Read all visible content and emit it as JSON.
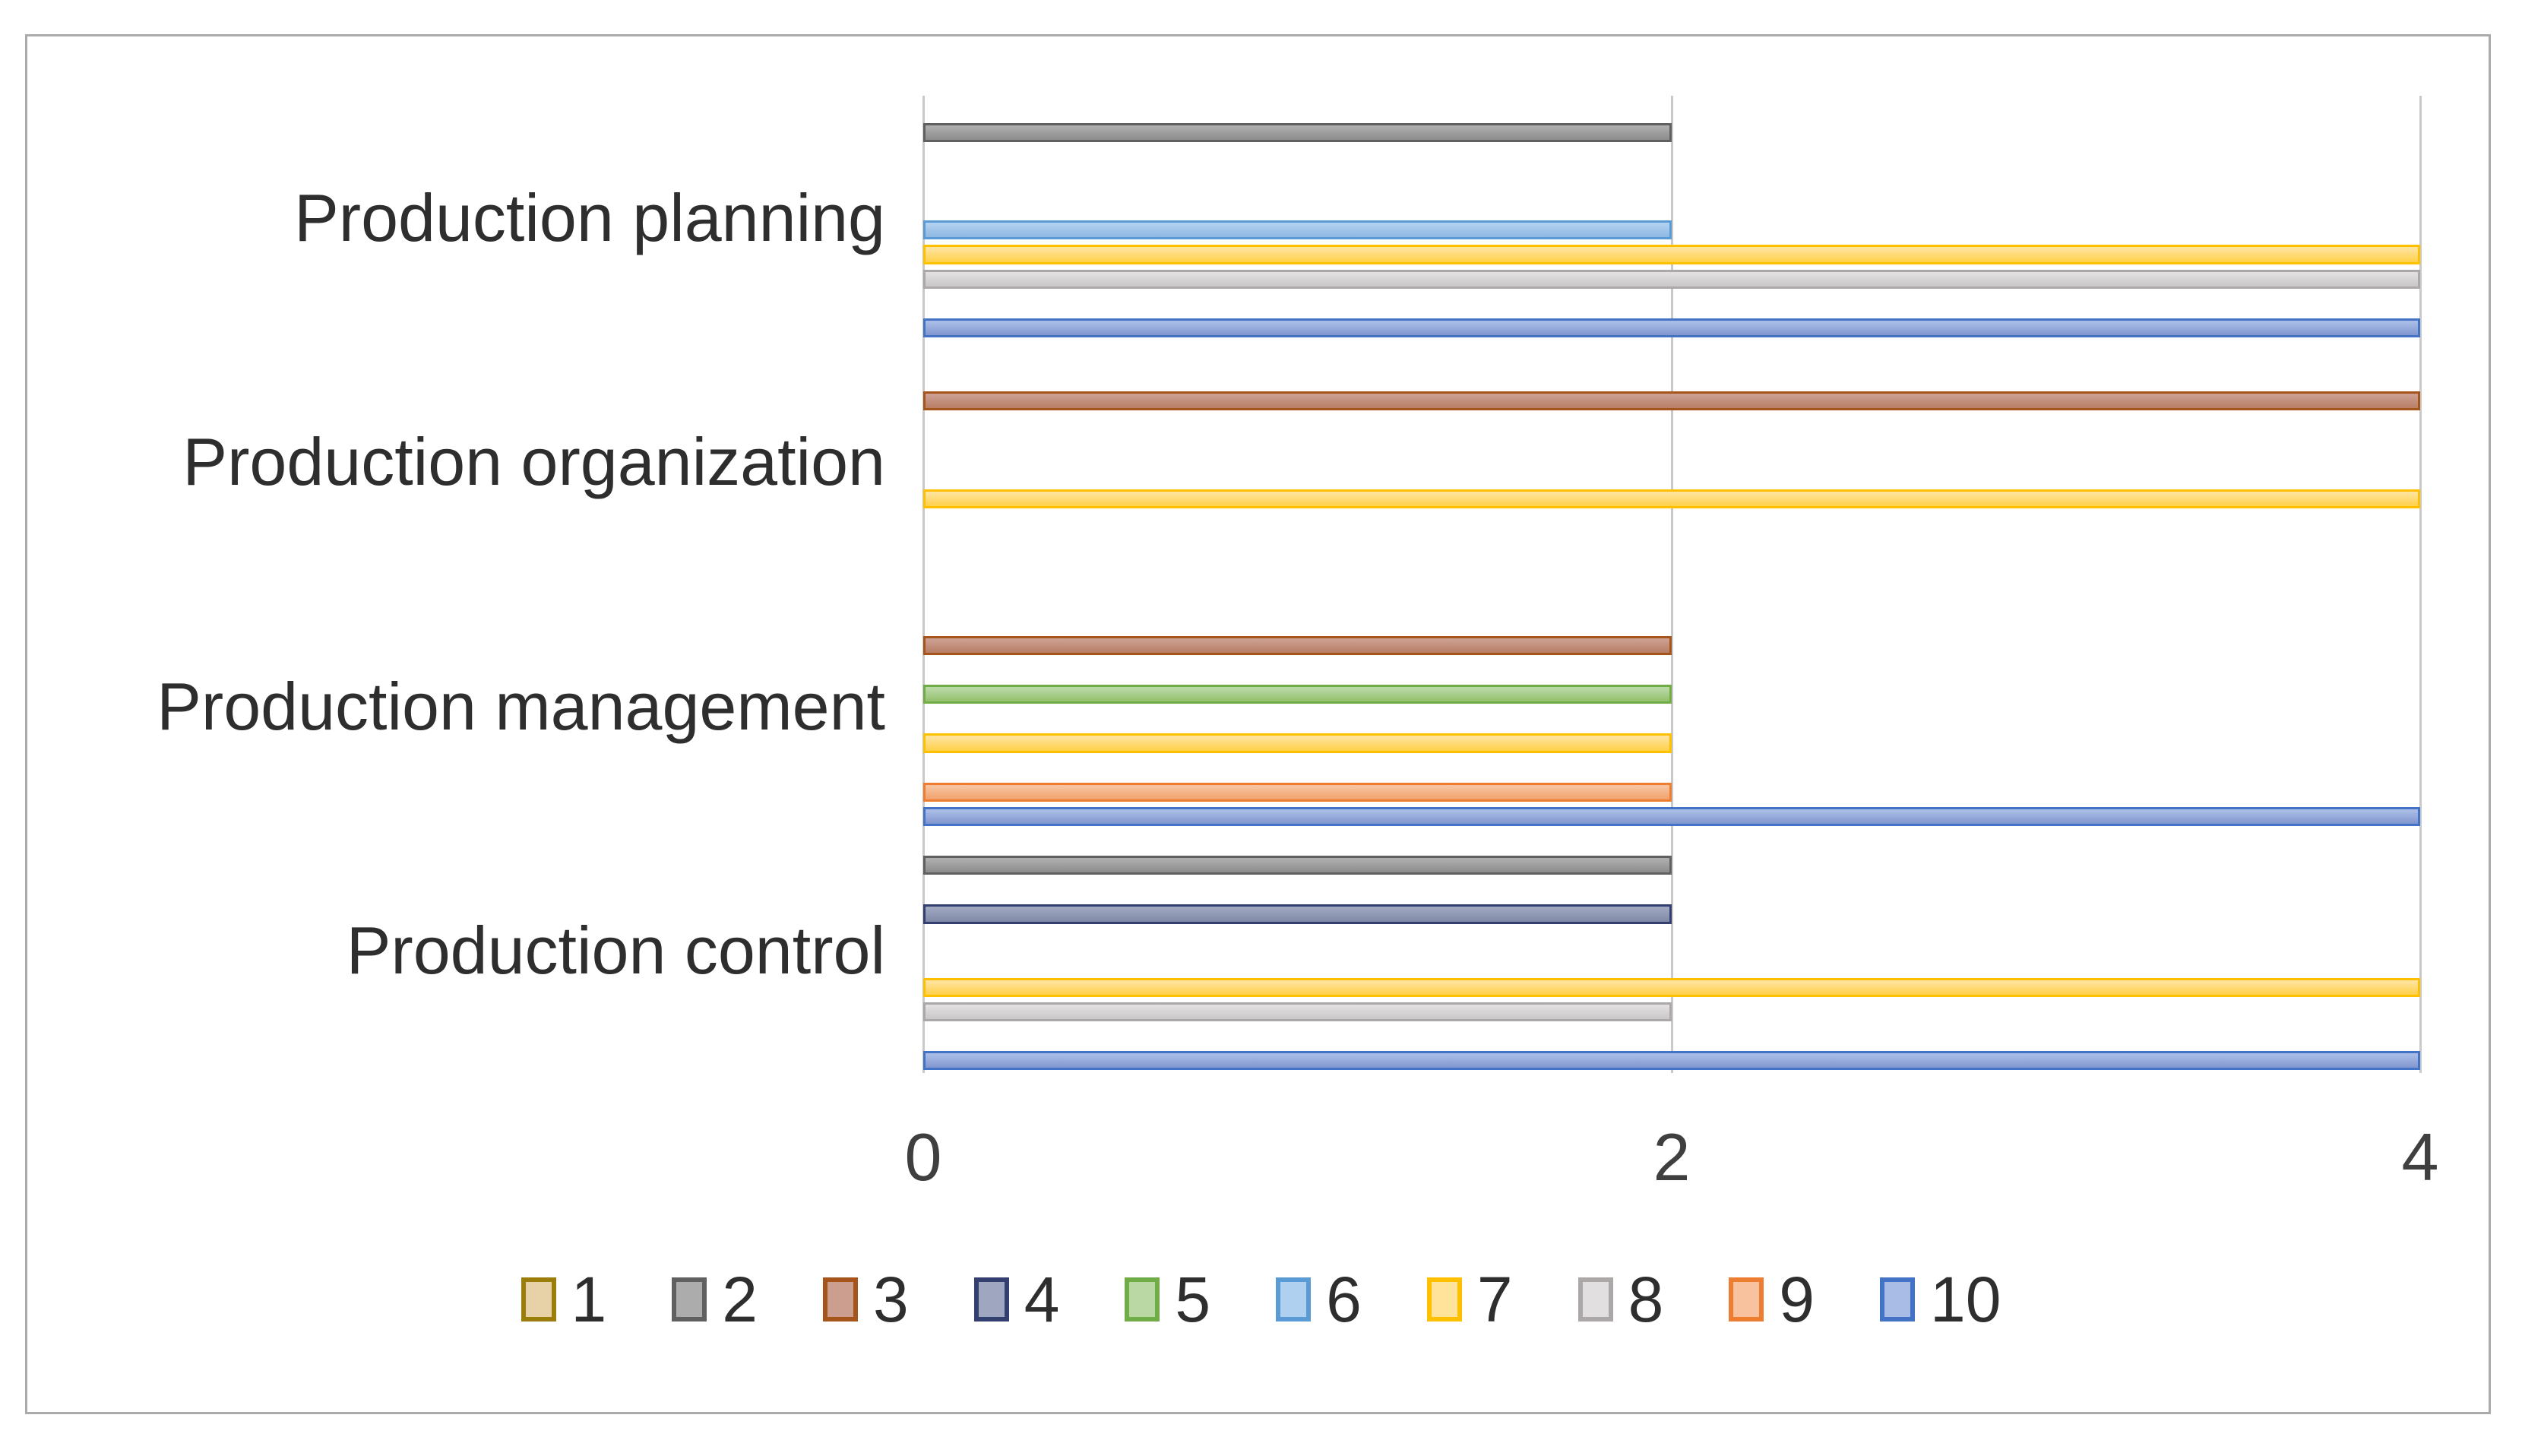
{
  "chart_data": {
    "type": "bar",
    "orientation": "horizontal",
    "title": "",
    "xlabel": "",
    "ylabel": "",
    "categories": [
      "Production planning",
      "Production organization",
      "Production management",
      "Production control"
    ],
    "series": [
      {
        "name": "1",
        "values": [
          0,
          0,
          0,
          0
        ],
        "border": "#9a7d0a",
        "fill_light": "#e7d2a8",
        "fill": "#d9bd85"
      },
      {
        "name": "2",
        "values": [
          2,
          0,
          0,
          2
        ],
        "border": "#606060",
        "fill_light": "#acacac",
        "fill": "#8f8f8f"
      },
      {
        "name": "3",
        "values": [
          0,
          4,
          2,
          0
        ],
        "border": "#a5551c",
        "fill_light": "#cb9e90",
        "fill": "#ba8069"
      },
      {
        "name": "4",
        "values": [
          0,
          0,
          0,
          2
        ],
        "border": "#323f6f",
        "fill_light": "#9ea6c0",
        "fill": "#828ca9"
      },
      {
        "name": "5",
        "values": [
          0,
          0,
          2,
          0
        ],
        "border": "#70ad47",
        "fill_light": "#b9d8a4",
        "fill": "#97c271"
      },
      {
        "name": "6",
        "values": [
          2,
          0,
          0,
          0
        ],
        "border": "#5b9bd5",
        "fill_light": "#b0d0ef",
        "fill": "#90bae4"
      },
      {
        "name": "7",
        "values": [
          4,
          4,
          2,
          4
        ],
        "border": "#ffc000",
        "fill_light": "#ffe39b",
        "fill": "#ffd24f"
      },
      {
        "name": "8",
        "values": [
          4,
          0,
          0,
          2
        ],
        "border": "#aca8a8",
        "fill_light": "#e1dfdf",
        "fill": "#cbc9c9"
      },
      {
        "name": "9",
        "values": [
          0,
          0,
          2,
          0
        ],
        "border": "#ed7d31",
        "fill_light": "#f8c29e",
        "fill": "#f1a470"
      },
      {
        "name": "10",
        "values": [
          4,
          0,
          4,
          4
        ],
        "border": "#4472c4",
        "fill_light": "#a8bce6",
        "fill": "#8499d1"
      }
    ],
    "x_ticks": [
      "0",
      "2",
      "4"
    ],
    "xlim": [
      0,
      4
    ],
    "grid": true,
    "legend_position": "bottom",
    "legend_labels": [
      "1",
      "2",
      "3",
      "4",
      "5",
      "6",
      "7",
      "8",
      "9",
      "10"
    ]
  },
  "colors": {
    "gridline": "#c9c9c9",
    "figure_border": "#ababab",
    "label_text": "#2e2e2e",
    "tick_text": "#3f3f3f",
    "background": "#ffffff"
  }
}
